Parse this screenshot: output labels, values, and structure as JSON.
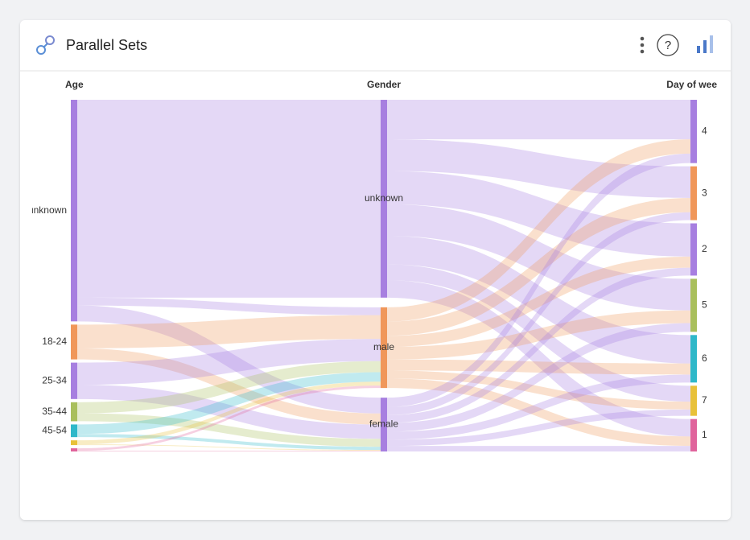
{
  "header": {
    "title": "Parallel Sets"
  },
  "chart_data": {
    "type": "parallel_sets",
    "dimensions": [
      {
        "name": "Age",
        "categories": [
          "unknown",
          "18-24",
          "25-34",
          "35-44",
          "45-54",
          null,
          null
        ],
        "colors": [
          "#a77fe0",
          "#f0975a",
          "#a77fe0",
          "#a9bf5c",
          "#2fb8c9",
          "#e8c13a",
          "#e0649c"
        ]
      },
      {
        "name": "Gender",
        "categories": [
          "unknown",
          "male",
          "female"
        ],
        "colors": [
          "#a77fe0",
          "#f0975a",
          "#a77fe0"
        ]
      },
      {
        "name": "Day of wee",
        "categories": [
          "4",
          "3",
          "2",
          "5",
          "6",
          "7",
          "1"
        ],
        "colors": [
          "#a77fe0",
          "#f0975a",
          "#a77fe0",
          "#a9bf5c",
          "#2fb8c9",
          "#e8c13a",
          "#e0649c"
        ]
      }
    ],
    "links": [
      {
        "values": [
          [
            250,
            10,
            20
          ],
          [
            0,
            30,
            14
          ],
          [
            0,
            28,
            18
          ],
          [
            0,
            14,
            10
          ],
          [
            0,
            12,
            4
          ],
          [
            0,
            5,
            1
          ],
          [
            0,
            3,
            1
          ]
        ]
      },
      {
        "values": [
          [
            50,
            40,
            42,
            40,
            36,
            20,
            22
          ],
          [
            18,
            18,
            14,
            16,
            14,
            10,
            12
          ],
          [
            12,
            10,
            10,
            11,
            10,
            8,
            7
          ]
        ]
      }
    ]
  }
}
